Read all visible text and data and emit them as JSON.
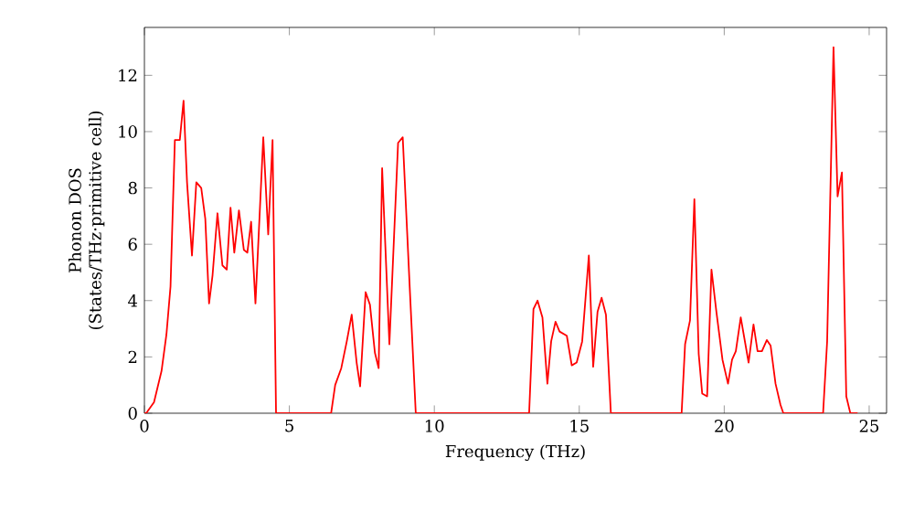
{
  "chart_data": {
    "type": "line",
    "xlabel": "Frequency (THz)",
    "ylabel": "Phonon DOS\n(States/THz·primitive cell)",
    "xlim": [
      0,
      25.6
    ],
    "ylim": [
      0,
      13.7
    ],
    "xticks": [
      0,
      5,
      10,
      15,
      20,
      25
    ],
    "yticks": [
      0,
      2,
      4,
      6,
      8,
      10,
      12
    ],
    "grid": false,
    "marker": "none",
    "line_style": "solid",
    "series": [
      {
        "color": "#ff0000",
        "x": [
          0,
          0.06,
          0.33,
          0.59,
          0.76,
          0.9,
          1.05,
          1.22,
          1.35,
          1.47,
          1.64,
          1.79,
          1.96,
          2.1,
          2.23,
          2.35,
          2.52,
          2.69,
          2.84,
          2.97,
          3.1,
          3.26,
          3.43,
          3.55,
          3.68,
          3.83,
          4.1,
          4.27,
          4.42,
          4.54,
          6.44,
          6.58,
          6.79,
          6.98,
          7.15,
          7.32,
          7.44,
          7.63,
          7.78,
          7.95,
          8.08,
          8.2,
          8.45,
          8.75,
          8.91,
          9.15,
          9.36,
          13.27,
          13.42,
          13.56,
          13.73,
          13.9,
          14.03,
          14.18,
          14.32,
          14.57,
          14.74,
          14.91,
          15.1,
          15.33,
          15.48,
          15.63,
          15.77,
          15.92,
          16.09,
          18.53,
          18.65,
          18.82,
          18.97,
          19.12,
          19.24,
          19.41,
          19.56,
          19.73,
          19.94,
          20.13,
          20.27,
          20.4,
          20.57,
          20.84,
          21.01,
          21.15,
          21.3,
          21.47,
          21.6,
          21.77,
          21.94,
          22.04,
          23.41,
          23.55,
          23.77,
          23.91,
          24.06,
          24.21,
          24.35,
          24.6
        ],
        "values": [
          0,
          0,
          0.39,
          1.5,
          2.8,
          4.5,
          9.7,
          9.7,
          11.1,
          8.2,
          5.6,
          8.2,
          8.0,
          6.9,
          3.9,
          4.9,
          7.1,
          5.25,
          5.1,
          7.3,
          5.7,
          7.2,
          5.8,
          5.7,
          6.8,
          3.9,
          9.8,
          6.35,
          9.7,
          0,
          0,
          1.0,
          1.6,
          2.55,
          3.5,
          1.8,
          0.95,
          4.3,
          3.85,
          2.15,
          1.6,
          8.7,
          2.45,
          9.6,
          9.8,
          4.5,
          0,
          0,
          3.7,
          4.0,
          3.4,
          1.05,
          2.55,
          3.25,
          2.9,
          2.75,
          1.7,
          1.8,
          2.55,
          5.6,
          1.65,
          3.6,
          4.1,
          3.5,
          0,
          0,
          2.45,
          3.3,
          7.6,
          2.1,
          0.7,
          0.6,
          5.1,
          3.6,
          1.9,
          1.05,
          1.9,
          2.2,
          3.4,
          1.8,
          3.15,
          2.2,
          2.2,
          2.6,
          2.4,
          1.05,
          0.3,
          0,
          0,
          2.55,
          13.0,
          7.7,
          8.55,
          0.6,
          0,
          0
        ]
      }
    ]
  }
}
